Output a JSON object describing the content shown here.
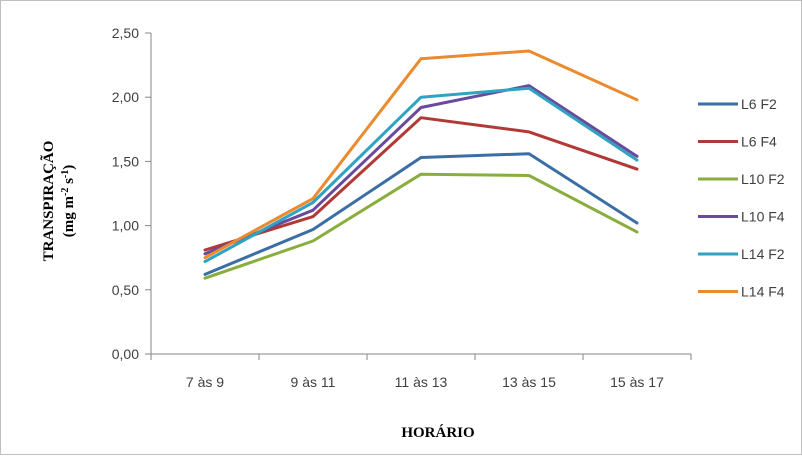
{
  "chart_data": {
    "type": "line",
    "xlabel": "HORÁRIO",
    "ylabel": "TRANSPIRAÇÃO",
    "ylabel_unit": "(mg m-2 s-1)",
    "categories": [
      "7 às 9",
      "9 às 11",
      "11 às 13",
      "13 às 15",
      "15 às 17"
    ],
    "ylim": [
      0,
      2.5
    ],
    "yticks": [
      "0,00",
      "0,50",
      "1,00",
      "1,50",
      "2,00",
      "2,50"
    ],
    "grid": false,
    "legend_position": "right",
    "series": [
      {
        "name": "L6 F2",
        "color": "#3A6EA5",
        "values": [
          0.62,
          0.97,
          1.53,
          1.56,
          1.02
        ]
      },
      {
        "name": "L6 F4",
        "color": "#B03A35",
        "values": [
          0.81,
          1.07,
          1.84,
          1.73,
          1.44
        ]
      },
      {
        "name": "L10 F2",
        "color": "#8AAE3E",
        "values": [
          0.59,
          0.88,
          1.4,
          1.39,
          0.95
        ]
      },
      {
        "name": "L10 F4",
        "color": "#6A4A9C",
        "values": [
          0.78,
          1.12,
          1.92,
          2.09,
          1.54
        ]
      },
      {
        "name": "L14 F2",
        "color": "#2FA3C2",
        "values": [
          0.72,
          1.18,
          2.0,
          2.07,
          1.51
        ]
      },
      {
        "name": "L14 F4",
        "color": "#EB8A2E",
        "values": [
          0.75,
          1.21,
          2.3,
          2.36,
          1.98
        ]
      }
    ]
  }
}
